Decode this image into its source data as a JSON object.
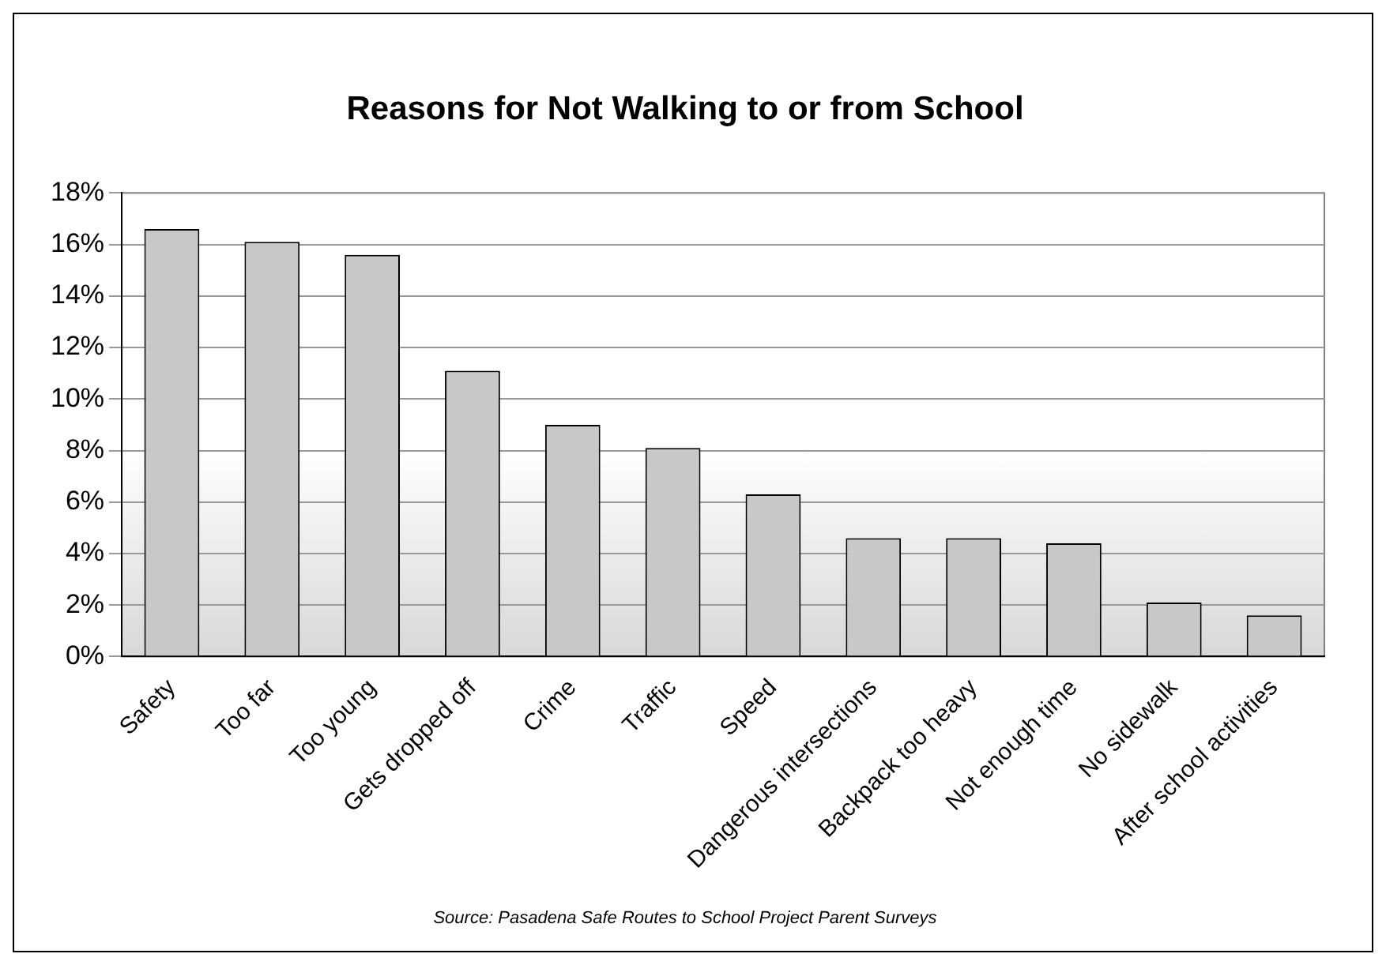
{
  "chart_data": {
    "type": "bar",
    "title": "Reasons for Not Walking to or from School",
    "categories": [
      "Safety",
      "Too far",
      "Too young",
      "Gets dropped off",
      "Crime",
      "Traffic",
      "Speed",
      "Dangerous intersections",
      "Backpack too heavy",
      "Not enough time",
      "No sidewalk",
      "After school activities"
    ],
    "values": [
      16.6,
      16.1,
      15.6,
      11.1,
      9.0,
      8.1,
      6.3,
      4.6,
      4.6,
      4.4,
      2.1,
      1.6
    ],
    "color": "#c8c8c8",
    "ylim": [
      0,
      18
    ],
    "yticks": [
      {
        "value": 0,
        "label": "0%"
      },
      {
        "value": 2,
        "label": "2%"
      },
      {
        "value": 4,
        "label": "4%"
      },
      {
        "value": 6,
        "label": "6%"
      },
      {
        "value": 8,
        "label": "8%"
      },
      {
        "value": 10,
        "label": "10%"
      },
      {
        "value": 12,
        "label": "12%"
      },
      {
        "value": 14,
        "label": "14%"
      },
      {
        "value": 16,
        "label": "16%"
      },
      {
        "value": 18,
        "label": "18%"
      }
    ],
    "grid": "y",
    "legend": false,
    "annotations": [
      "Source: Pasadena Safe Routes to School Project Parent Surveys"
    ]
  }
}
